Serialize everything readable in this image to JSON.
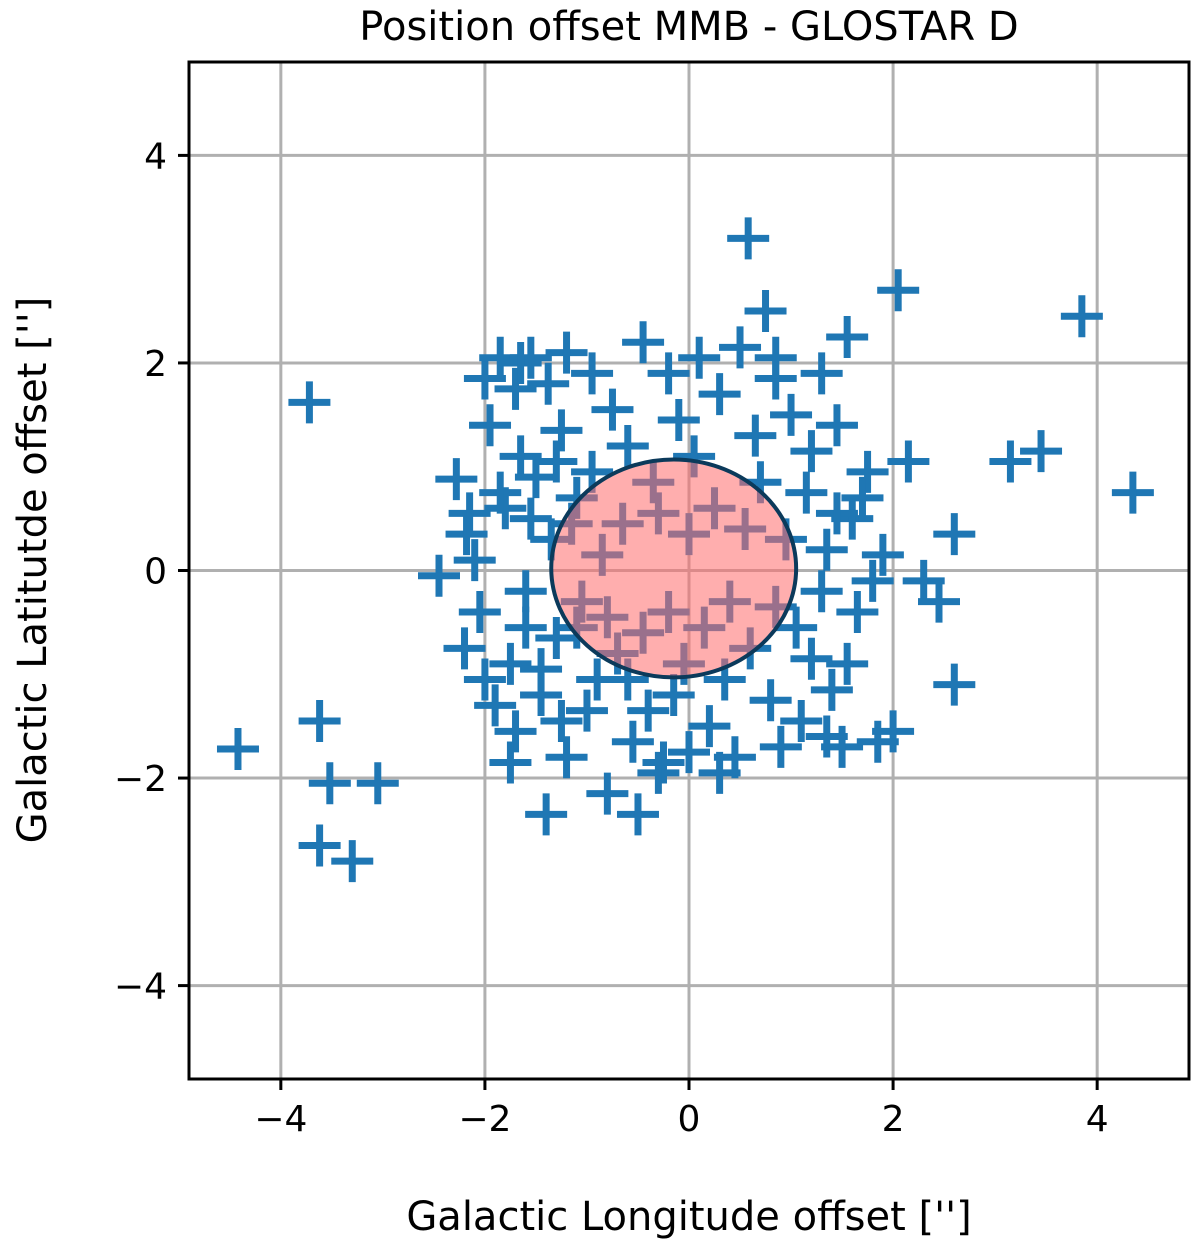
{
  "chart_data": {
    "type": "scatter",
    "title": "Position offset MMB - GLOSTAR D",
    "xlabel": "Galactic Longitude offset ['']",
    "ylabel": "Galactic Latitutde offset ['']",
    "xlim": [
      -4.9,
      4.9
    ],
    "ylim": [
      -4.9,
      4.9
    ],
    "xticks": [
      -4,
      -2,
      0,
      2,
      4
    ],
    "yticks": [
      -4,
      -2,
      0,
      2,
      4
    ],
    "xtick_labels": [
      "−4",
      "−2",
      "0",
      "2",
      "4"
    ],
    "ytick_labels": [
      "−4",
      "−2",
      "0",
      "2",
      "4"
    ],
    "grid": true,
    "marker": "+",
    "marker_color": "#1f77b4",
    "ellipse": {
      "center": [
        -0.15,
        0.02
      ],
      "width": 2.4,
      "height": 2.1,
      "fill": "#ff6b6b",
      "edge": "#0b3a5b"
    },
    "points": [
      [
        -4.42,
        -1.72
      ],
      [
        -3.72,
        1.62
      ],
      [
        -3.62,
        -1.45
      ],
      [
        -3.52,
        -2.05
      ],
      [
        -3.62,
        -2.65
      ],
      [
        -3.3,
        -2.8
      ],
      [
        -3.05,
        -2.05
      ],
      [
        -2.45,
        -0.05
      ],
      [
        -2.28,
        0.88
      ],
      [
        -2.18,
        0.35
      ],
      [
        -2.05,
        -0.4
      ],
      [
        -2.0,
        1.85
      ],
      [
        -1.95,
        1.4
      ],
      [
        -1.85,
        2.05
      ],
      [
        -1.8,
        0.6
      ],
      [
        -1.75,
        -0.9
      ],
      [
        -1.7,
        -1.55
      ],
      [
        -1.65,
        1.1
      ],
      [
        -1.6,
        -0.2
      ],
      [
        -1.55,
        2.05
      ],
      [
        -1.5,
        0.9
      ],
      [
        -1.45,
        -1.2
      ],
      [
        -1.4,
        -2.35
      ],
      [
        -1.38,
        1.8
      ],
      [
        -1.35,
        0.3
      ],
      [
        -1.3,
        -0.65
      ],
      [
        -1.25,
        1.35
      ],
      [
        -1.2,
        -1.8
      ],
      [
        -1.1,
        0.7
      ],
      [
        -1.05,
        -0.3
      ],
      [
        -0.95,
        1.9
      ],
      [
        -0.9,
        -1.05
      ],
      [
        -0.85,
        0.15
      ],
      [
        -0.8,
        -2.15
      ],
      [
        -0.75,
        1.55
      ],
      [
        -0.7,
        -0.8
      ],
      [
        -0.6,
        1.2
      ],
      [
        -0.55,
        -1.65
      ],
      [
        -0.5,
        -2.35
      ],
      [
        -0.45,
        2.2
      ],
      [
        -0.4,
        -1.35
      ],
      [
        -0.35,
        0.85
      ],
      [
        -0.25,
        -1.85
      ],
      [
        -0.2,
        1.9
      ],
      [
        -0.15,
        -1.2
      ],
      [
        -0.1,
        1.45
      ],
      [
        -0.05,
        -0.9
      ],
      [
        0.0,
        -1.75
      ],
      [
        0.05,
        1.1
      ],
      [
        0.1,
        2.05
      ],
      [
        0.2,
        -1.5
      ],
      [
        0.3,
        1.7
      ],
      [
        0.35,
        -1.05
      ],
      [
        0.45,
        -1.8
      ],
      [
        0.5,
        2.15
      ],
      [
        0.58,
        3.2
      ],
      [
        0.65,
        1.3
      ],
      [
        0.75,
        2.5
      ],
      [
        0.8,
        -1.25
      ],
      [
        0.85,
        1.85
      ],
      [
        0.9,
        -1.7
      ],
      [
        1.0,
        1.5
      ],
      [
        1.05,
        -0.55
      ],
      [
        1.15,
        0.75
      ],
      [
        1.2,
        -0.85
      ],
      [
        1.3,
        1.9
      ],
      [
        1.35,
        0.2
      ],
      [
        1.4,
        -1.15
      ],
      [
        1.45,
        1.4
      ],
      [
        1.5,
        -1.7
      ],
      [
        1.55,
        2.25
      ],
      [
        1.6,
        0.5
      ],
      [
        1.65,
        -0.4
      ],
      [
        1.75,
        0.95
      ],
      [
        1.85,
        -1.65
      ],
      [
        1.9,
        0.15
      ],
      [
        2.0,
        -1.55
      ],
      [
        2.05,
        2.7
      ],
      [
        2.15,
        1.05
      ],
      [
        2.3,
        -0.1
      ],
      [
        2.45,
        -0.3
      ],
      [
        2.6,
        0.35
      ],
      [
        2.6,
        -1.1
      ],
      [
        3.15,
        1.05
      ],
      [
        3.45,
        1.15
      ],
      [
        3.85,
        2.45
      ],
      [
        4.35,
        0.75
      ],
      [
        -2.2,
        -0.75
      ],
      [
        -2.1,
        0.1
      ],
      [
        -1.9,
        -1.3
      ],
      [
        -1.85,
        0.75
      ],
      [
        -1.7,
        1.75
      ],
      [
        -1.6,
        -0.55
      ],
      [
        -1.55,
        0.5
      ],
      [
        -1.45,
        -0.95
      ],
      [
        -1.3,
        1.05
      ],
      [
        -1.25,
        -1.45
      ],
      [
        -1.15,
        0.45
      ],
      [
        -1.1,
        -0.55
      ],
      [
        -1.0,
        -1.35
      ],
      [
        -0.95,
        0.95
      ],
      [
        -0.8,
        -0.45
      ],
      [
        -0.65,
        0.45
      ],
      [
        -0.6,
        -1.05
      ],
      [
        -0.45,
        -0.6
      ],
      [
        -0.3,
        0.55
      ],
      [
        -0.2,
        -0.4
      ],
      [
        0.0,
        0.35
      ],
      [
        0.15,
        -0.55
      ],
      [
        0.25,
        0.6
      ],
      [
        0.4,
        -0.3
      ],
      [
        0.55,
        0.4
      ],
      [
        0.6,
        -0.75
      ],
      [
        0.7,
        0.85
      ],
      [
        0.85,
        -0.35
      ],
      [
        0.95,
        0.3
      ],
      [
        1.1,
        -1.45
      ],
      [
        1.2,
        1.15
      ],
      [
        1.3,
        -0.2
      ],
      [
        1.45,
        0.55
      ],
      [
        1.55,
        -0.9
      ],
      [
        1.7,
        0.7
      ],
      [
        -1.75,
        -1.85
      ],
      [
        -1.65,
        2.0
      ],
      [
        -1.2,
        2.1
      ],
      [
        -0.3,
        -1.95
      ],
      [
        0.3,
        -1.95
      ],
      [
        0.85,
        2.05
      ],
      [
        1.35,
        -1.6
      ],
      [
        -2.0,
        -1.05
      ],
      [
        -2.15,
        0.55
      ],
      [
        1.8,
        -0.1
      ]
    ]
  }
}
